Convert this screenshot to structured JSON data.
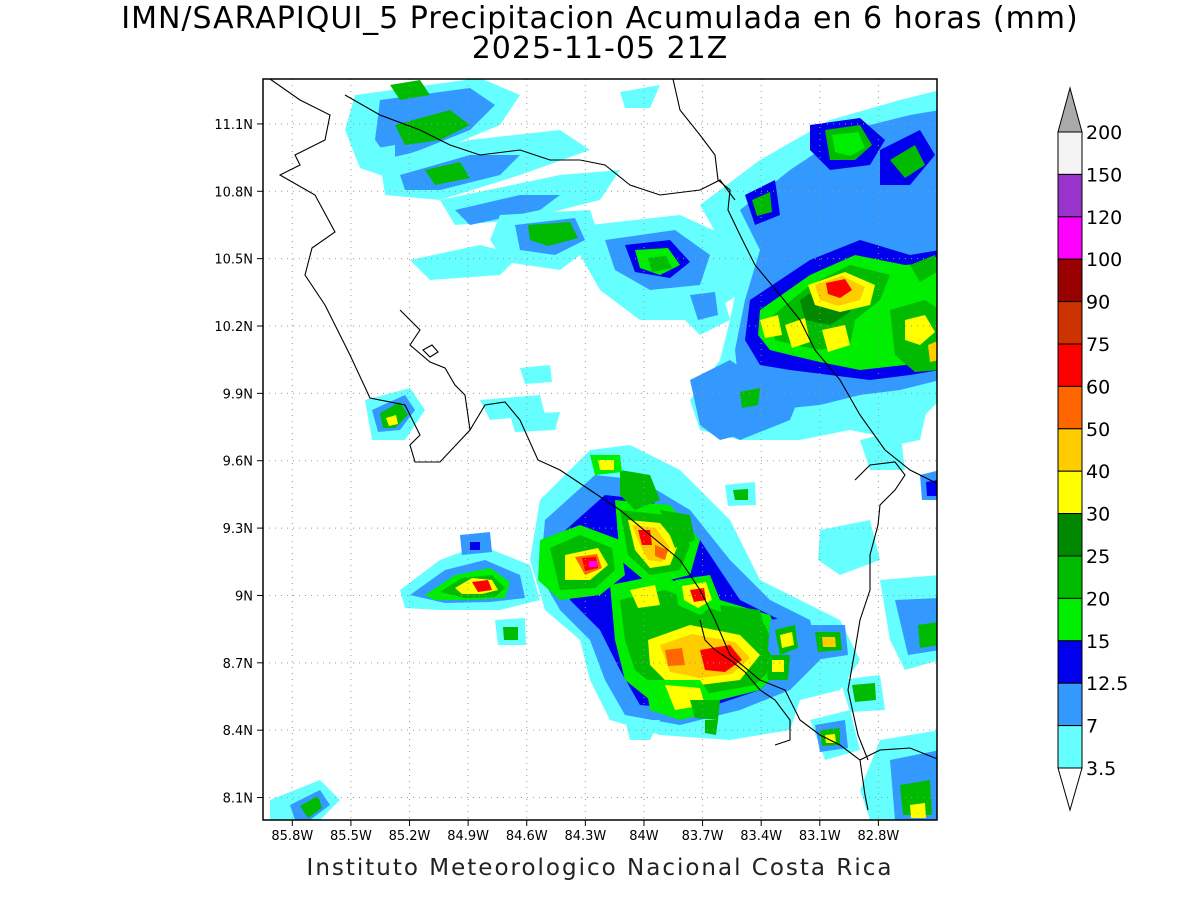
{
  "title": {
    "line1": "IMN/SARAPIQUI_5 Precipitacion Acumulada en 6 horas (mm)",
    "line2": "2025-11-05 21Z"
  },
  "footer": "Instituto Meteorologico Nacional Costa Rica",
  "map": {
    "lat_ticks": [
      "11.1N",
      "10.8N",
      "10.5N",
      "10.2N",
      "9.9N",
      "9.6N",
      "9.3N",
      "9N",
      "8.7N",
      "8.4N",
      "8.1N"
    ],
    "lon_ticks": [
      "85.8W",
      "85.5W",
      "85.2W",
      "84.9W",
      "84.6W",
      "84.3W",
      "84W",
      "83.7W",
      "83.4W",
      "83.1W",
      "82.8W"
    ],
    "lat_range": [
      8.0,
      11.3
    ],
    "lon_range": [
      -85.95,
      -82.5
    ],
    "colors": {
      "light_cyan": "#66ffff",
      "sky_blue": "#3399ff",
      "blue": "#0000ee",
      "bright_green": "#00ee00",
      "green": "#00bb00",
      "dark_green": "#008800",
      "yellow": "#ffff00",
      "gold": "#ffcc00",
      "orange": "#ff6600",
      "red": "#ff0000",
      "dark_orange_red": "#cc3300",
      "dark_red": "#990000",
      "magenta": "#ff00ff",
      "purple": "#9933cc",
      "near_white": "#f4f4f4",
      "over_gray": "#aaaaaa"
    }
  },
  "colorbar": {
    "labels": [
      "200",
      "150",
      "120",
      "100",
      "90",
      "75",
      "60",
      "50",
      "40",
      "30",
      "25",
      "20",
      "15",
      "12.5",
      "7",
      "3.5"
    ],
    "colors": [
      "#f4f4f4",
      "#9933cc",
      "#ff00ff",
      "#990000",
      "#cc3300",
      "#ff0000",
      "#ff6600",
      "#ffcc00",
      "#ffff00",
      "#008800",
      "#00bb00",
      "#00ee00",
      "#0000ee",
      "#3399ff",
      "#66ffff"
    ]
  }
}
